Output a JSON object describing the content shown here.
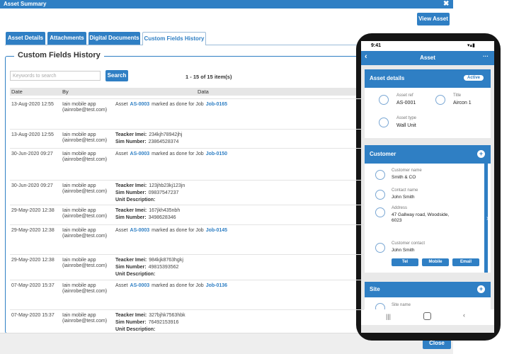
{
  "window": {
    "title": "Asset Summary",
    "view_button": "View Asset",
    "close_button": "Close"
  },
  "tabs": [
    "Asset Details",
    "Attachments",
    "Digital Documents",
    "Custom Fields History"
  ],
  "active_tab": 3,
  "section_title": "Custom Fields History",
  "search": {
    "placeholder": "Keywords to search",
    "button": "Search",
    "paging": "1 - 15 of 15 item(s)"
  },
  "table": {
    "columns": [
      "Date",
      "By",
      "Data"
    ],
    "rows": [
      {
        "date": "13-Aug-2020 12:55",
        "by": [
          "Iain mobile app",
          "(iainrobe@test.com)"
        ],
        "data": [
          [
            {
              "t": "Asset"
            },
            {
              "t": "AS-0003",
              "s": "link"
            },
            {
              "t": "marked as done for Job"
            },
            {
              "t": "Job-0165",
              "s": "link"
            }
          ]
        ]
      },
      {
        "date": "13-Aug-2020 12:55",
        "by": [
          "Iain mobile app",
          "(iainrobe@test.com)"
        ],
        "data": [
          [
            {
              "t": "Teacker Imei:",
              "s": "bold"
            },
            {
              "t": "234kjh78942jhj"
            }
          ],
          [
            {
              "t": "Sim Number:",
              "s": "bold"
            },
            {
              "t": "23864528374"
            }
          ]
        ]
      },
      {
        "date": "30-Jun-2020 09:27",
        "by": [
          "Iain mobile app",
          "(iainrobe@test.com)"
        ],
        "data": [
          [
            {
              "t": "Asset"
            },
            {
              "t": "AS-0003",
              "s": "link"
            },
            {
              "t": "marked as done for Job"
            },
            {
              "t": "Job-0150",
              "s": "link"
            }
          ]
        ]
      },
      {
        "date": "30-Jun-2020 09:27",
        "by": [
          "Iain mobile app",
          "(iainrobe@test.com)"
        ],
        "data": [
          [
            {
              "t": "Teacker Imei:",
              "s": "bold"
            },
            {
              "t": "123jhb23kj123jn"
            }
          ],
          [
            {
              "t": "Sim Number:",
              "s": "bold"
            },
            {
              "t": "09837547237"
            }
          ],
          [
            {
              "t": "Unit Description:",
              "s": "bold"
            }
          ]
        ]
      },
      {
        "date": "29-May-2020 12:38",
        "by": [
          "Iain mobile app",
          "(iainrobe@test.com)"
        ],
        "data": [
          [
            {
              "t": "Teacker Imei:",
              "s": "bold"
            },
            {
              "t": "167jkh435nbh"
            }
          ],
          [
            {
              "t": "Sim Number:",
              "s": "bold"
            },
            {
              "t": "3498628346"
            }
          ]
        ]
      },
      {
        "date": "29-May-2020 12:38",
        "by": [
          "Iain mobile app",
          "(iainrobe@test.com)"
        ],
        "data": [
          [
            {
              "t": "Asset"
            },
            {
              "t": "AS-0003",
              "s": "link"
            },
            {
              "t": "marked as done for Job"
            },
            {
              "t": "Job-0145",
              "s": "link"
            }
          ]
        ]
      },
      {
        "date": "29-May-2020 12:38",
        "by": [
          "Iain mobile app",
          "(iainrobe@test.com)"
        ],
        "data": [
          [
            {
              "t": "Teacker Imei:",
              "s": "bold"
            },
            {
              "t": "984kjk8763hgkj"
            }
          ],
          [
            {
              "t": "Sim Number:",
              "s": "bold"
            },
            {
              "t": "49815393562"
            }
          ],
          [
            {
              "t": "Unit Description:",
              "s": "bold"
            }
          ]
        ]
      },
      {
        "date": "07-May-2020 15:37",
        "by": [
          "Iain mobile app",
          "(iainrobe@test.com)"
        ],
        "data": [
          [
            {
              "t": "Asset"
            },
            {
              "t": "AS-0003",
              "s": "link"
            },
            {
              "t": "marked as done for Job"
            },
            {
              "t": "Job-0136",
              "s": "link"
            }
          ]
        ]
      },
      {
        "date": "07-May-2020 15:37",
        "by": [
          "Iain mobile app",
          "(iainrobe@test.com)"
        ],
        "data": [
          [
            {
              "t": "Teacker Imei:",
              "s": "bold"
            },
            {
              "t": "327bjhk7563hbk"
            }
          ],
          [
            {
              "t": "Sim Number:",
              "s": "bold"
            },
            {
              "t": "76492153916"
            }
          ],
          [
            {
              "t": "Unit Description:",
              "s": "bold"
            }
          ]
        ]
      }
    ]
  },
  "phone": {
    "time": "9:41",
    "header": "Asset",
    "asset_card": {
      "title": "Asset details",
      "status": "Active",
      "fields": [
        {
          "label": "Asset ref",
          "value": "AS-0001"
        },
        {
          "label": "Title",
          "value": "Aircon 1"
        },
        {
          "label": "Asset type",
          "value": "Wall Unit"
        }
      ]
    },
    "customer_card": {
      "title": "Customer",
      "fields": [
        {
          "label": "Customer name",
          "value": "Smith & CO"
        },
        {
          "label": "Contact name",
          "value": "John Smith"
        },
        {
          "label": "Address",
          "value": "47 Gallway road, Woodside, 6023"
        },
        {
          "label": "Customer contact",
          "value": "John Smith"
        }
      ],
      "buttons": [
        "Tel",
        "Mobile",
        "Email"
      ]
    },
    "site_card": {
      "title": "Site",
      "fields": [
        {
          "label": "Site name"
        }
      ]
    }
  }
}
